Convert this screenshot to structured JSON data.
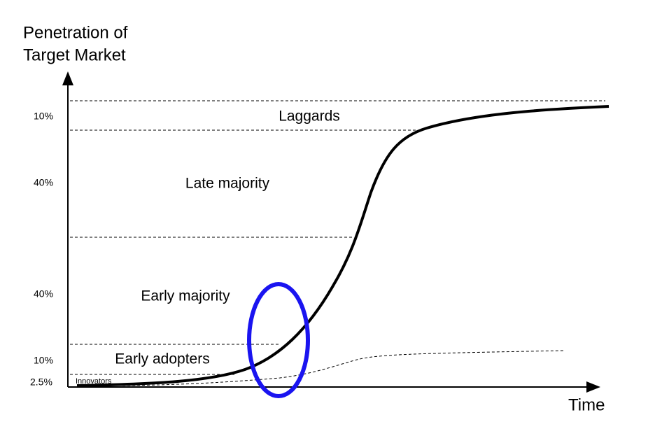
{
  "y_label_lines": [
    "Penetration of",
    "Target Market"
  ],
  "x_label": "Time",
  "segments": [
    {
      "label": "Laggards",
      "share": "10%"
    },
    {
      "label": "Late majority",
      "share": "40%"
    },
    {
      "label": "Early majority",
      "share": "40%"
    },
    {
      "label": "Early adopters",
      "share": "10%"
    },
    {
      "label": "Innovators",
      "share": "2.5%"
    }
  ]
}
